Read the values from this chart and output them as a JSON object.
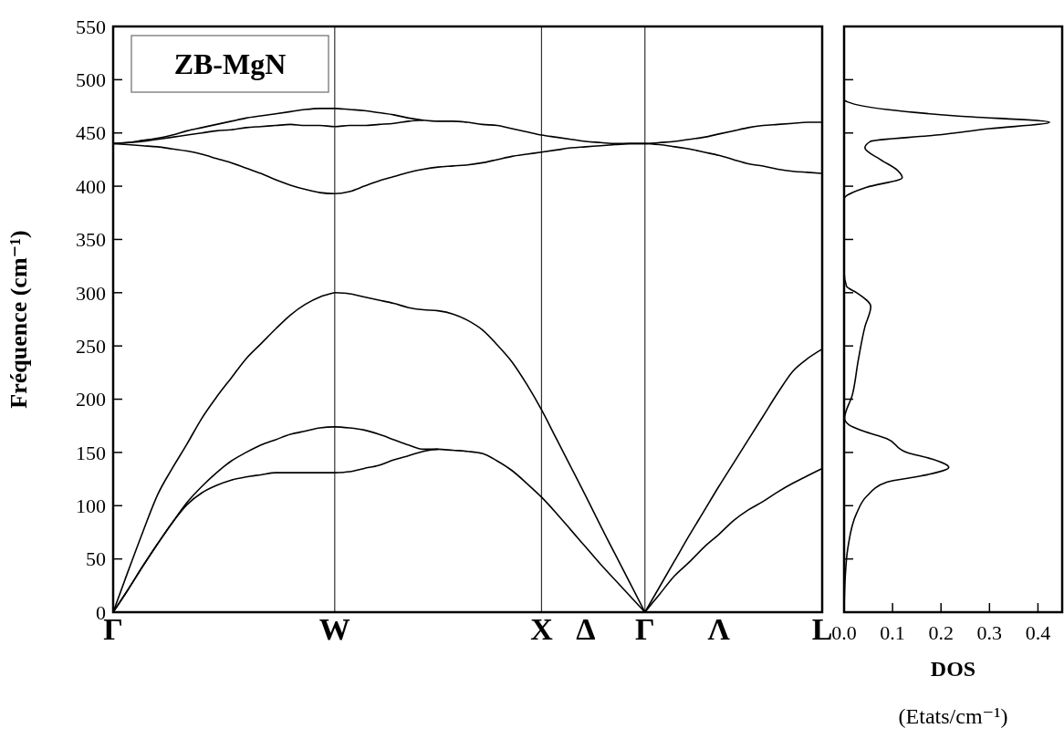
{
  "chart_data": [
    {
      "type": "line",
      "ylabel": "Fréquence (cm⁻¹)",
      "annotations": [
        "ZB-MgN"
      ],
      "categories": [
        "Γ",
        null,
        null,
        null,
        null,
        null,
        null,
        null,
        null,
        null,
        null,
        null,
        null,
        null,
        null,
        "W",
        null,
        null,
        null,
        null,
        null,
        null,
        null,
        null,
        null,
        null,
        null,
        null,
        null,
        "X",
        null,
        null,
        "Δ",
        null,
        null,
        null,
        "Γ",
        null,
        null,
        null,
        null,
        "Λ",
        null,
        null,
        null,
        null,
        null,
        null,
        "L"
      ],
      "ylim": [
        0,
        550
      ],
      "yticks": [
        0,
        50,
        100,
        150,
        200,
        250,
        300,
        350,
        400,
        450,
        500,
        550
      ],
      "series": [
        {
          "color": "#000000",
          "values": [
            440,
            441,
            443,
            445,
            448,
            452,
            455,
            458,
            461,
            464,
            466,
            468,
            470,
            472,
            473,
            473,
            472,
            471,
            469,
            467,
            464,
            462,
            461,
            461,
            460,
            458,
            457,
            454,
            451,
            448,
            446,
            444,
            442,
            441,
            440,
            440,
            440,
            441,
            442,
            444,
            446,
            449,
            452,
            455,
            457,
            458,
            459,
            460,
            460
          ]
        },
        {
          "color": "#000000",
          "values": [
            440,
            441,
            442,
            444,
            446,
            448,
            450,
            452,
            453,
            455,
            456,
            457,
            458,
            457,
            457,
            456,
            457,
            457,
            458,
            459,
            461,
            462,
            null,
            null,
            null,
            null,
            null,
            null,
            null,
            null,
            null,
            null,
            null,
            null,
            null,
            null,
            null,
            null,
            null,
            null,
            null,
            null,
            null,
            null,
            null,
            null,
            null,
            null,
            null
          ]
        },
        {
          "color": "#000000",
          "values": [
            440,
            439,
            438,
            437,
            435,
            433,
            430,
            426,
            422,
            417,
            412,
            406,
            401,
            397,
            394,
            393,
            395,
            400,
            405,
            409,
            413,
            416,
            418,
            419,
            420,
            422,
            425,
            428,
            430,
            432,
            434,
            436,
            437,
            438,
            439,
            440,
            440,
            439,
            437,
            435,
            432,
            429,
            425,
            421,
            419,
            416,
            414,
            413,
            412
          ]
        },
        {
          "color": "#000000",
          "values": [
            0,
            38,
            75,
            110,
            135,
            158,
            182,
            202,
            220,
            238,
            252,
            266,
            279,
            289,
            296,
            300,
            null,
            null,
            null,
            null,
            null,
            null,
            null,
            null,
            null,
            null,
            null,
            null,
            null,
            null,
            null,
            null,
            null,
            null,
            null,
            null,
            null,
            null,
            null,
            null,
            null,
            null,
            null,
            null,
            null,
            null,
            null,
            null,
            null
          ]
        },
        {
          "color": "#000000",
          "values": [
            null,
            null,
            null,
            null,
            null,
            null,
            null,
            null,
            null,
            null,
            null,
            null,
            null,
            null,
            null,
            300,
            299,
            296,
            293,
            290,
            286,
            284,
            283,
            280,
            274,
            265,
            251,
            235,
            214,
            190,
            163,
            136,
            109,
            81,
            54,
            27,
            0,
            null,
            null,
            null,
            null,
            null,
            null,
            null,
            null,
            null,
            null,
            null,
            null
          ]
        },
        {
          "color": "#000000",
          "values": [
            0,
            21,
            43,
            64,
            84,
            103,
            118,
            131,
            142,
            150,
            157,
            162,
            167,
            170,
            173,
            174,
            173,
            171,
            167,
            162,
            157,
            153,
            153,
            null,
            null,
            null,
            null,
            null,
            null,
            null,
            null,
            null,
            null,
            null,
            null,
            null,
            null,
            null,
            null,
            null,
            null,
            null,
            null,
            null,
            null,
            null,
            null,
            null,
            null
          ]
        },
        {
          "color": "#000000",
          "values": [
            0,
            21,
            43,
            64,
            84,
            101,
            112,
            119,
            124,
            127,
            129,
            131,
            131,
            131,
            131,
            131,
            null,
            null,
            null,
            null,
            null,
            null,
            null,
            null,
            null,
            null,
            null,
            null,
            null,
            null,
            null,
            null,
            null,
            null,
            null,
            null,
            null,
            null,
            null,
            null,
            null,
            null,
            null,
            null,
            null,
            null,
            null,
            null,
            null
          ]
        },
        {
          "color": "#000000",
          "values": [
            null,
            null,
            null,
            null,
            null,
            null,
            null,
            null,
            null,
            null,
            null,
            null,
            null,
            null,
            null,
            131,
            132,
            135,
            138,
            143,
            147,
            151,
            153,
            152,
            151,
            149,
            142,
            133,
            121,
            108,
            93,
            77,
            61,
            45,
            30,
            15,
            0,
            null,
            null,
            null,
            null,
            null,
            null,
            null,
            null,
            null,
            null,
            null,
            null
          ]
        },
        {
          "color": "#000000",
          "values": [
            null,
            null,
            null,
            null,
            null,
            null,
            null,
            null,
            null,
            null,
            null,
            null,
            null,
            null,
            null,
            null,
            null,
            null,
            null,
            null,
            null,
            null,
            null,
            null,
            null,
            null,
            null,
            null,
            null,
            null,
            null,
            null,
            null,
            null,
            null,
            null,
            0,
            24,
            48,
            72,
            95,
            118,
            140,
            162,
            184,
            206,
            226,
            238,
            247
          ]
        },
        {
          "color": "#000000",
          "values": [
            null,
            null,
            null,
            null,
            null,
            null,
            null,
            null,
            null,
            null,
            null,
            null,
            null,
            null,
            null,
            null,
            null,
            null,
            null,
            null,
            null,
            null,
            null,
            null,
            null,
            null,
            null,
            null,
            null,
            null,
            null,
            null,
            null,
            null,
            null,
            null,
            0,
            17,
            34,
            47,
            61,
            73,
            86,
            96,
            104,
            113,
            121,
            128,
            135
          ]
        }
      ]
    },
    {
      "type": "line",
      "xlabel": "DOS (Etats/cm⁻¹)",
      "tick_labels": "x",
      "xlim": [
        0,
        0.45
      ],
      "xticks": [
        {
          "value": 0,
          "label": "0.0"
        },
        0.1,
        0.2,
        0.3,
        0.4
      ],
      "ylim": [
        0,
        550
      ],
      "yticks": [
        0,
        50,
        100,
        150,
        200,
        250,
        300,
        350,
        400,
        450,
        500,
        550
      ],
      "series": [
        {
          "color": "#000000",
          "x": [
            0,
            0.002,
            0.008,
            0.026,
            0.047,
            0.088,
            0.16,
            0.216,
            0.18,
            0.13,
            0.088,
            0.04,
            0.01,
            0.001,
            0.017,
            0.029,
            0.043,
            0.055,
            0.026,
            0.005,
            0,
            0,
            0.047,
            0.12,
            0.11,
            0.075,
            0.043,
            0.054,
            0.19,
            0.3,
            0.424,
            0.23,
            0.088,
            0.008,
            0
          ],
          "values": [
            0,
            30,
            61,
            93,
            109,
            122,
            128,
            136,
            144,
            150,
            163,
            170,
            176,
            182,
            204,
            236,
            268,
            287,
            300,
            306,
            320,
            388,
            399,
            408,
            415,
            425,
            436,
            442,
            448,
            454,
            460,
            466,
            472,
            479,
            481
          ]
        }
      ]
    }
  ]
}
